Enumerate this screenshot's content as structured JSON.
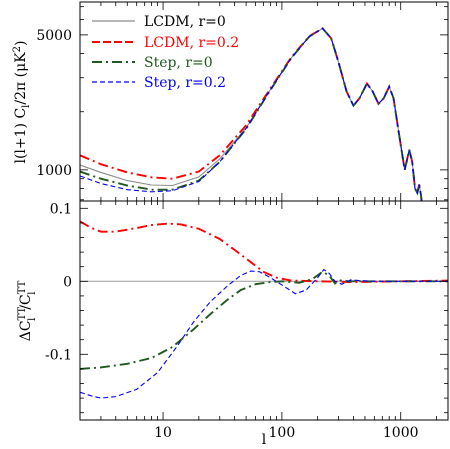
{
  "chart_data": [
    {
      "type": "line",
      "xscale": "log",
      "yscale": "log",
      "xlim": [
        2,
        2500
      ],
      "ylim": [
        690,
        7400
      ],
      "ylabel_parts": {
        "a": "l(l+1) C",
        "sub": "l",
        "b": "/2π (μK",
        "sup": "2",
        "c": ")"
      },
      "yticks": [
        {
          "value": 1000,
          "label": "1000"
        },
        {
          "value": 5000,
          "label": "5000"
        }
      ],
      "legend_position": "top-left",
      "series": [
        {
          "name": "LCDM, r=0",
          "color": "#8c8c8c",
          "dash": "solid",
          "points": [
            [
              2,
              1060
            ],
            [
              3,
              970
            ],
            [
              5,
              880
            ],
            [
              8,
              835
            ],
            [
              12,
              830
            ],
            [
              20,
              920
            ],
            [
              30,
              1140
            ],
            [
              50,
              1650
            ],
            [
              80,
              2600
            ],
            [
              120,
              3800
            ],
            [
              170,
              4900
            ],
            [
              220,
              5400
            ],
            [
              260,
              4800
            ],
            [
              300,
              3600
            ],
            [
              350,
              2550
            ],
            [
              400,
              2150
            ],
            [
              450,
              2350
            ],
            [
              520,
              2800
            ],
            [
              580,
              2550
            ],
            [
              650,
              2200
            ],
            [
              720,
              2350
            ],
            [
              800,
              2700
            ],
            [
              870,
              2350
            ],
            [
              950,
              1650
            ],
            [
              1030,
              1200
            ],
            [
              1080,
              1000
            ],
            [
              1120,
              1100
            ],
            [
              1180,
              1270
            ],
            [
              1250,
              1100
            ],
            [
              1320,
              800
            ],
            [
              1380,
              760
            ],
            [
              1430,
              840
            ],
            [
              1480,
              740
            ],
            [
              1560,
              550
            ]
          ]
        },
        {
          "name": "LCDM, r=0.2",
          "color": "#ff0000",
          "dash": "10,4,2,4",
          "points": [
            [
              2,
              1190
            ],
            [
              3,
              1070
            ],
            [
              5,
              970
            ],
            [
              8,
              915
            ],
            [
              12,
              900
            ],
            [
              20,
              980
            ],
            [
              30,
              1190
            ],
            [
              50,
              1700
            ],
            [
              80,
              2640
            ],
            [
              120,
              3830
            ],
            [
              170,
              4920
            ],
            [
              220,
              5410
            ],
            [
              260,
              4800
            ],
            [
              300,
              3600
            ],
            [
              350,
              2550
            ],
            [
              400,
              2150
            ],
            [
              450,
              2350
            ],
            [
              520,
              2800
            ],
            [
              580,
              2550
            ],
            [
              650,
              2200
            ],
            [
              720,
              2350
            ],
            [
              800,
              2700
            ],
            [
              870,
              2350
            ],
            [
              950,
              1650
            ],
            [
              1030,
              1200
            ],
            [
              1080,
              1000
            ],
            [
              1120,
              1100
            ],
            [
              1180,
              1270
            ],
            [
              1250,
              1100
            ],
            [
              1320,
              800
            ],
            [
              1380,
              760
            ],
            [
              1430,
              840
            ],
            [
              1480,
              740
            ],
            [
              1560,
              550
            ]
          ]
        },
        {
          "name": "Step, r=0",
          "color": "#1f5a1f",
          "dash": "10,4,2,4",
          "points": [
            [
              2,
              980
            ],
            [
              3,
              900
            ],
            [
              5,
              830
            ],
            [
              8,
              790
            ],
            [
              12,
              790
            ],
            [
              20,
              880
            ],
            [
              30,
              1100
            ],
            [
              50,
              1630
            ],
            [
              80,
              2590
            ],
            [
              120,
              3790
            ],
            [
              170,
              4900
            ],
            [
              220,
              5400
            ],
            [
              260,
              4800
            ],
            [
              300,
              3600
            ],
            [
              350,
              2550
            ],
            [
              400,
              2150
            ],
            [
              450,
              2350
            ],
            [
              520,
              2800
            ],
            [
              580,
              2550
            ],
            [
              650,
              2200
            ],
            [
              720,
              2350
            ],
            [
              800,
              2700
            ],
            [
              870,
              2350
            ],
            [
              950,
              1650
            ],
            [
              1030,
              1200
            ],
            [
              1080,
              1000
            ],
            [
              1120,
              1100
            ],
            [
              1180,
              1270
            ],
            [
              1250,
              1100
            ],
            [
              1320,
              800
            ],
            [
              1380,
              760
            ],
            [
              1430,
              840
            ],
            [
              1480,
              740
            ],
            [
              1560,
              550
            ]
          ]
        },
        {
          "name": "Step, r=0.2",
          "color": "#0000ff",
          "dash": "5,3",
          "points": [
            [
              2,
              930
            ],
            [
              3,
              850
            ],
            [
              5,
              790
            ],
            [
              8,
              770
            ],
            [
              12,
              780
            ],
            [
              20,
              870
            ],
            [
              30,
              1100
            ],
            [
              50,
              1640
            ],
            [
              80,
              2600
            ],
            [
              120,
              3800
            ],
            [
              170,
              4900
            ],
            [
              220,
              5400
            ],
            [
              260,
              4800
            ],
            [
              300,
              3600
            ],
            [
              350,
              2550
            ],
            [
              400,
              2150
            ],
            [
              450,
              2350
            ],
            [
              520,
              2800
            ],
            [
              580,
              2550
            ],
            [
              650,
              2200
            ],
            [
              720,
              2350
            ],
            [
              800,
              2700
            ],
            [
              870,
              2350
            ],
            [
              950,
              1650
            ],
            [
              1030,
              1200
            ],
            [
              1080,
              1000
            ],
            [
              1120,
              1100
            ],
            [
              1180,
              1270
            ],
            [
              1250,
              1100
            ],
            [
              1320,
              800
            ],
            [
              1380,
              760
            ],
            [
              1430,
              840
            ],
            [
              1480,
              740
            ],
            [
              1560,
              550
            ]
          ]
        }
      ]
    },
    {
      "type": "line",
      "xscale": "log",
      "xlim": [
        2,
        2500
      ],
      "ylim": [
        -0.19,
        0.11
      ],
      "ylabel_parts": {
        "a": "ΔC",
        "sup1": "TT",
        "sub1": "l",
        "b": "/C",
        "sup2": "TT",
        "sub2": "l"
      },
      "xlabel": "l",
      "xticks": [
        {
          "value": 10,
          "label": "10"
        },
        {
          "value": 100,
          "label": "100"
        },
        {
          "value": 1000,
          "label": "1000"
        }
      ],
      "yticks": [
        {
          "value": 0.1,
          "label": "0.1"
        },
        {
          "value": 0,
          "label": "0"
        },
        {
          "value": -0.1,
          "label": "-0.1"
        }
      ],
      "reference_line": {
        "value": 0,
        "color": "#9a9a9a"
      },
      "series": [
        {
          "name": "LCDM, r=0.2",
          "color": "#ff0000",
          "dash": "10,4,2,4",
          "points": [
            [
              2,
              0.082
            ],
            [
              2.5,
              0.073
            ],
            [
              3,
              0.068
            ],
            [
              4,
              0.068
            ],
            [
              6,
              0.073
            ],
            [
              8,
              0.077
            ],
            [
              11,
              0.079
            ],
            [
              14,
              0.078
            ],
            [
              20,
              0.072
            ],
            [
              30,
              0.058
            ],
            [
              40,
              0.043
            ],
            [
              55,
              0.026
            ],
            [
              70,
              0.013
            ],
            [
              90,
              0.005
            ],
            [
              120,
              0.001
            ],
            [
              200,
              0
            ],
            [
              400,
              -0.001
            ],
            [
              1000,
              0
            ],
            [
              2500,
              0.001
            ]
          ]
        },
        {
          "name": "Step, r=0",
          "color": "#1f5a1f",
          "dash": "10,4,2,4",
          "points": [
            [
              2,
              -0.12
            ],
            [
              3,
              -0.118
            ],
            [
              5,
              -0.113
            ],
            [
              8,
              -0.105
            ],
            [
              12,
              -0.09
            ],
            [
              18,
              -0.066
            ],
            [
              25,
              -0.045
            ],
            [
              35,
              -0.025
            ],
            [
              45,
              -0.012
            ],
            [
              60,
              -0.004
            ],
            [
              80,
              -0.001
            ],
            [
              100,
              0.0
            ],
            [
              140,
              -0.002
            ],
            [
              180,
              0.003
            ],
            [
              220,
              0.013
            ],
            [
              250,
              0.008
            ],
            [
              280,
              -0.003
            ],
            [
              320,
              0.002
            ],
            [
              360,
              0.0
            ],
            [
              500,
              0.0
            ],
            [
              2500,
              0.0
            ]
          ]
        },
        {
          "name": "Step, r=0.2",
          "color": "#0000ff",
          "dash": "5,3",
          "points": [
            [
              2,
              -0.152
            ],
            [
              2.5,
              -0.157
            ],
            [
              3,
              -0.16
            ],
            [
              4,
              -0.158
            ],
            [
              6,
              -0.148
            ],
            [
              9,
              -0.125
            ],
            [
              13,
              -0.09
            ],
            [
              18,
              -0.056
            ],
            [
              25,
              -0.028
            ],
            [
              35,
              -0.006
            ],
            [
              45,
              0.008
            ],
            [
              55,
              0.014
            ],
            [
              65,
              0.013
            ],
            [
              80,
              0.005
            ],
            [
              100,
              -0.005
            ],
            [
              130,
              -0.017
            ],
            [
              160,
              -0.012
            ],
            [
              200,
              0.005
            ],
            [
              225,
              0.016
            ],
            [
              250,
              0.011
            ],
            [
              280,
              0.0
            ],
            [
              320,
              -0.004
            ],
            [
              380,
              0.002
            ],
            [
              450,
              0.001
            ],
            [
              600,
              0.0
            ],
            [
              2500,
              0.0
            ]
          ]
        }
      ]
    }
  ]
}
